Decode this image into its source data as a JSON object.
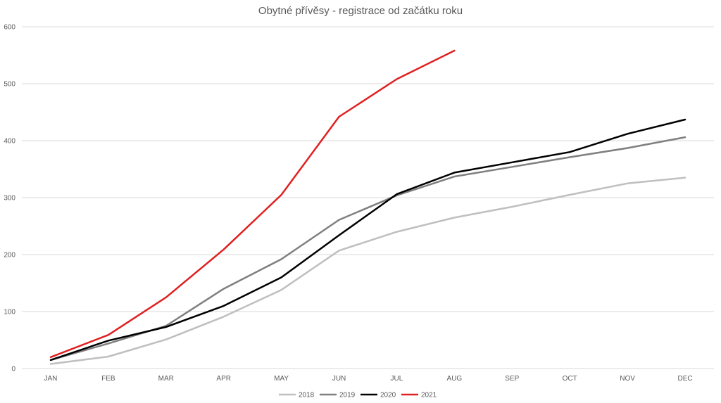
{
  "chart_data": {
    "type": "line",
    "title": "Obytné přívěsy - registrace od začátku roku",
    "xlabel": "",
    "ylabel": "",
    "categories": [
      "JAN",
      "FEB",
      "MAR",
      "APR",
      "MAY",
      "JUN",
      "JUL",
      "AUG",
      "SEP",
      "OCT",
      "NOV",
      "DEC"
    ],
    "ylim": [
      0,
      600
    ],
    "yticks": [
      "0",
      "100",
      "200",
      "300",
      "400",
      "500",
      "600"
    ],
    "grid": true,
    "legend_position": "bottom",
    "series": [
      {
        "name": "2018",
        "color": "#bfbfbf",
        "values": [
          8,
          21,
          51,
          91,
          138,
          207,
          240,
          265,
          284,
          305,
          325,
          335
        ]
      },
      {
        "name": "2019",
        "color": "#7f7f7f",
        "values": [
          15,
          44,
          75,
          140,
          192,
          261,
          304,
          337,
          354,
          371,
          387,
          406
        ]
      },
      {
        "name": "2020",
        "color": "#000000",
        "values": [
          15,
          49,
          73,
          110,
          160,
          234,
          306,
          344,
          362,
          380,
          412,
          437
        ]
      },
      {
        "name": "2021",
        "color": "#e02020",
        "values": [
          20,
          59,
          125,
          209,
          305,
          442,
          508,
          558,
          null,
          null,
          null,
          null
        ]
      }
    ]
  }
}
